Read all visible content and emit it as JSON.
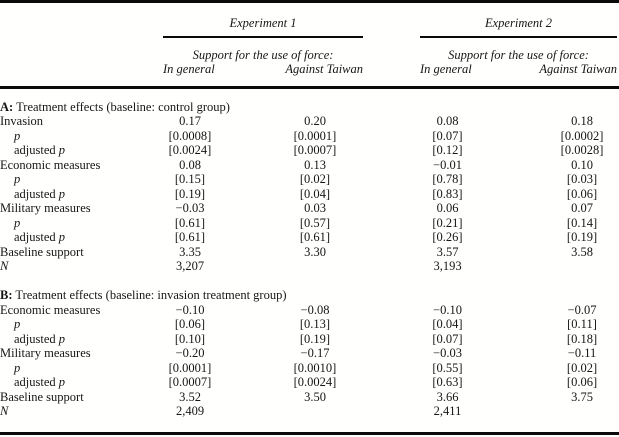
{
  "colors": {
    "background": "#ffffff",
    "text": "#161616",
    "rule": "#0a0a0a"
  },
  "header": {
    "groups": [
      {
        "title": "Experiment 1",
        "subtitle": "Support for the use of force:",
        "col1": "In general",
        "col2": "Against Taiwan"
      },
      {
        "title": "Experiment 2",
        "subtitle": "Support for the use of force:",
        "col1": "In general",
        "col2": "Against Taiwan"
      }
    ]
  },
  "table": {
    "panels": [
      {
        "header": {
          "bold": "A:",
          "rest": " Treatment effects (baseline: control group)"
        },
        "rows": [
          {
            "label": [
              {
                "t": "Invasion",
                "it": false
              }
            ],
            "indent": false,
            "values": [
              "0.17",
              "0.20",
              "0.08",
              "0.18"
            ]
          },
          {
            "label": [
              {
                "t": "p",
                "it": true
              }
            ],
            "indent": true,
            "values": [
              "[0.0008]",
              "[0.0001]",
              "[0.07]",
              "[0.0002]"
            ]
          },
          {
            "label": [
              {
                "t": "adjusted ",
                "it": false
              },
              {
                "t": "p",
                "it": true
              }
            ],
            "indent": true,
            "values": [
              "[0.0024]",
              "[0.0007]",
              "[0.12]",
              "[0.0028]"
            ]
          },
          {
            "label": [
              {
                "t": "Economic measures",
                "it": false
              }
            ],
            "indent": false,
            "values": [
              "0.08",
              "0.13",
              "−0.01",
              "0.10"
            ]
          },
          {
            "label": [
              {
                "t": "p",
                "it": true
              }
            ],
            "indent": true,
            "values": [
              "[0.15]",
              "[0.02]",
              "[0.78]",
              "[0.03]"
            ]
          },
          {
            "label": [
              {
                "t": "adjusted ",
                "it": false
              },
              {
                "t": "p",
                "it": true
              }
            ],
            "indent": true,
            "values": [
              "[0.19]",
              "[0.04]",
              "[0.83]",
              "[0.06]"
            ]
          },
          {
            "label": [
              {
                "t": "Military measures",
                "it": false
              }
            ],
            "indent": false,
            "values": [
              "−0.03",
              "0.03",
              "0.06",
              "0.07"
            ]
          },
          {
            "label": [
              {
                "t": "p",
                "it": true
              }
            ],
            "indent": true,
            "values": [
              "[0.61]",
              "[0.57]",
              "[0.21]",
              "[0.14]"
            ]
          },
          {
            "label": [
              {
                "t": "adjusted ",
                "it": false
              },
              {
                "t": "p",
                "it": true
              }
            ],
            "indent": true,
            "values": [
              "[0.61]",
              "[0.61]",
              "[0.26]",
              "[0.19]"
            ]
          },
          {
            "label": [
              {
                "t": "Baseline support",
                "it": false
              }
            ],
            "indent": false,
            "values": [
              "3.35",
              "3.30",
              "3.57",
              "3.58"
            ]
          },
          {
            "label": [
              {
                "t": "N",
                "it": true
              }
            ],
            "indent": false,
            "values": [
              "3,207",
              "",
              "3,193",
              ""
            ]
          }
        ]
      },
      {
        "header": {
          "bold": "B:",
          "rest": " Treatment effects (baseline: invasion treatment group)"
        },
        "rows": [
          {
            "label": [
              {
                "t": "Economic measures",
                "it": false
              }
            ],
            "indent": false,
            "values": [
              "−0.10",
              "−0.08",
              "−0.10",
              "−0.07"
            ]
          },
          {
            "label": [
              {
                "t": "p",
                "it": true
              }
            ],
            "indent": true,
            "values": [
              "[0.06]",
              "[0.13]",
              "[0.04]",
              "[0.11]"
            ]
          },
          {
            "label": [
              {
                "t": "adjusted ",
                "it": false
              },
              {
                "t": "p",
                "it": true
              }
            ],
            "indent": true,
            "values": [
              "[0.10]",
              "[0.19]",
              "[0.07]",
              "[0.18]"
            ]
          },
          {
            "label": [
              {
                "t": "Military measures",
                "it": false
              }
            ],
            "indent": false,
            "values": [
              "−0.20",
              "−0.17",
              "−0.03",
              "−0.11"
            ]
          },
          {
            "label": [
              {
                "t": "p",
                "it": true
              }
            ],
            "indent": true,
            "values": [
              "[0.0001]",
              "[0.0010]",
              "[0.55]",
              "[0.02]"
            ]
          },
          {
            "label": [
              {
                "t": "adjusted ",
                "it": false
              },
              {
                "t": "p",
                "it": true
              }
            ],
            "indent": true,
            "values": [
              "[0.0007]",
              "[0.0024]",
              "[0.63]",
              "[0.06]"
            ]
          },
          {
            "label": [
              {
                "t": "Baseline support",
                "it": false
              }
            ],
            "indent": false,
            "values": [
              "3.52",
              "3.50",
              "3.66",
              "3.75"
            ]
          },
          {
            "label": [
              {
                "t": "N",
                "it": true
              }
            ],
            "indent": false,
            "values": [
              "2,409",
              "",
              "2,411",
              ""
            ]
          }
        ]
      }
    ]
  }
}
